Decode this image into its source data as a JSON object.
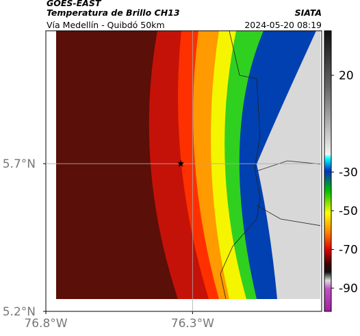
{
  "header": {
    "source": "GOES-EAST",
    "title": "Temperatura de Brillo CH13",
    "agency": "SIATA",
    "route": "Vía Medellín - Quibdó 50km",
    "timestamp": "2024-05-20 08:19"
  },
  "map": {
    "xlim": [
      -76.8,
      -75.86
    ],
    "ylim": [
      5.2,
      6.15
    ],
    "xticks": [
      {
        "value": -76.8,
        "label": "76.8°W"
      },
      {
        "value": -76.3,
        "label": "76.3°W"
      }
    ],
    "yticks": [
      {
        "value": 5.7,
        "label": "5.7°N"
      },
      {
        "value": 5.2,
        "label": "5.2°N"
      }
    ],
    "grid": true,
    "marker": {
      "lon": -76.34,
      "lat": 5.7
    }
  },
  "colorbar": {
    "lim": [
      -102,
      43
    ],
    "ticks": [
      20,
      -30,
      -50,
      -70,
      -90
    ]
  }
}
